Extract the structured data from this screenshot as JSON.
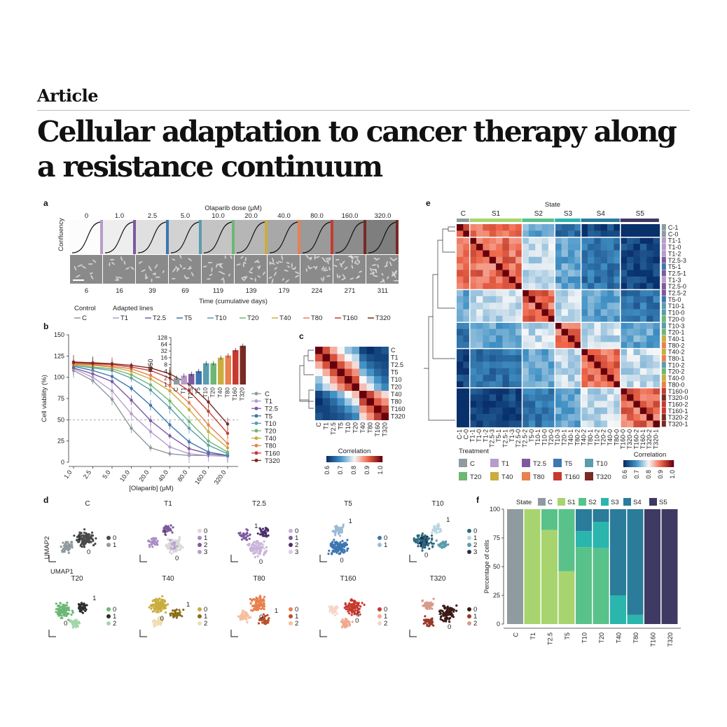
{
  "header": {
    "kicker": "Article",
    "title_line1": "Cellular adaptation to cancer therapy along",
    "title_line2": "a resistance continuum"
  },
  "colors": {
    "C": "#8f9b9e",
    "T1": "#b79ccb",
    "T2.5": "#7d5a9e",
    "T5": "#3d76b0",
    "T10": "#5a9cae",
    "T20": "#6db774",
    "T40": "#c9ad3f",
    "T80": "#e8804f",
    "T160": "#c73a2f",
    "T320": "#7a2a24",
    "S1": "#a8d46f",
    "S2": "#59c28a",
    "S3": "#2ab5ad",
    "S4": "#2b7b9b",
    "S5": "#3e3a63"
  },
  "panel_labels": [
    "a",
    "b",
    "c",
    "d",
    "e",
    "f"
  ],
  "panel_a": {
    "top_label": "Olaparib dose (μM)",
    "doses": [
      "0",
      "1.0",
      "2.5",
      "5.0",
      "10.0",
      "20.0",
      "40.0",
      "80.0",
      "160.0",
      "320.0"
    ],
    "days": [
      "6",
      "16",
      "39",
      "69",
      "119",
      "139",
      "179",
      "224",
      "271",
      "311"
    ],
    "y_label": "Confluency",
    "x_label": "Time (cumulative days)"
  },
  "legend_b": {
    "control_title": "Control",
    "adapted_title": "Adapted lines",
    "control": [
      "C"
    ],
    "adapted": [
      "T1",
      "T2.5",
      "T5",
      "T10",
      "T20",
      "T40",
      "T80",
      "T160",
      "T320"
    ]
  },
  "chart_data": [
    {
      "type": "line",
      "panel": "b",
      "title": "",
      "xlabel": "[Olaparib] (μM)",
      "ylabel": "Cell viability (%)",
      "x_ticks": [
        "1.0",
        "2.5",
        "5.0",
        "10.0",
        "20.0",
        "40.0",
        "80.0",
        "160.0",
        "320.0"
      ],
      "y_ticks": [
        0,
        25,
        50,
        75,
        100,
        125,
        150
      ],
      "ylim": [
        0,
        150
      ],
      "reference_line_y": 50,
      "series": [
        {
          "name": "C",
          "values": [
            108,
            96,
            74,
            40,
            17,
            10,
            8,
            8,
            7
          ]
        },
        {
          "name": "T1",
          "values": [
            110,
            100,
            84,
            57,
            36,
            18,
            10,
            8,
            7
          ]
        },
        {
          "name": "T2.5",
          "values": [
            111,
            104,
            95,
            73,
            49,
            31,
            16,
            10,
            8
          ]
        },
        {
          "name": "T5",
          "values": [
            113,
            108,
            101,
            87,
            67,
            44,
            24,
            12,
            8
          ]
        },
        {
          "name": "T10",
          "values": [
            114,
            111,
            108,
            99,
            85,
            64,
            40,
            20,
            10
          ]
        },
        {
          "name": "T20",
          "values": [
            114,
            112,
            110,
            103,
            91,
            72,
            48,
            25,
            12
          ]
        },
        {
          "name": "T40",
          "values": [
            115,
            114,
            112,
            107,
            98,
            84,
            62,
            36,
            17
          ]
        },
        {
          "name": "T80",
          "values": [
            116,
            115,
            113,
            110,
            102,
            90,
            70,
            44,
            22
          ]
        },
        {
          "name": "T160",
          "values": [
            117,
            116,
            115,
            112,
            108,
            99,
            84,
            60,
            34
          ]
        },
        {
          "name": "T320",
          "values": [
            118,
            117,
            116,
            114,
            111,
            104,
            92,
            71,
            45
          ]
        }
      ],
      "legend": [
        "C",
        "T1",
        "T2.5",
        "T5",
        "T10",
        "T20",
        "T40",
        "T80",
        "T160",
        "T320"
      ]
    },
    {
      "type": "bar",
      "panel": "b-inset",
      "title": "",
      "ylabel": "IC50",
      "categories": [
        "C",
        "T1",
        "T2.5",
        "T5",
        "T10",
        "T20",
        "T40",
        "T80",
        "T160",
        "T320"
      ],
      "values": [
        2,
        2.5,
        3,
        4,
        9,
        9,
        16,
        20,
        35,
        55
      ],
      "y_ticks": [
        1,
        2,
        4,
        8,
        16,
        32,
        64,
        128
      ],
      "scale": "log2"
    },
    {
      "type": "heatmap",
      "panel": "c",
      "title": "",
      "labels": [
        "C",
        "T1",
        "T2.5",
        "T5",
        "T10",
        "T20",
        "T40",
        "T80",
        "T160",
        "T320"
      ],
      "colorbar_title": "Correlation",
      "colorbar_ticks": [
        "0.6",
        "0.7",
        "0.8",
        "0.9",
        "1.0"
      ],
      "values": [
        [
          1.0,
          0.92,
          0.85,
          0.8,
          0.75,
          0.72,
          0.62,
          0.6,
          0.62,
          0.64
        ],
        [
          0.92,
          1.0,
          0.92,
          0.85,
          0.8,
          0.77,
          0.66,
          0.63,
          0.62,
          0.62
        ],
        [
          0.85,
          0.92,
          1.0,
          0.92,
          0.86,
          0.82,
          0.7,
          0.66,
          0.64,
          0.63
        ],
        [
          0.8,
          0.85,
          0.92,
          1.0,
          0.92,
          0.87,
          0.74,
          0.7,
          0.66,
          0.64
        ],
        [
          0.75,
          0.8,
          0.86,
          0.92,
          1.0,
          0.92,
          0.8,
          0.75,
          0.7,
          0.66
        ],
        [
          0.72,
          0.77,
          0.82,
          0.87,
          0.92,
          1.0,
          0.84,
          0.79,
          0.73,
          0.69
        ],
        [
          0.62,
          0.66,
          0.7,
          0.74,
          0.8,
          0.84,
          1.0,
          0.93,
          0.86,
          0.82
        ],
        [
          0.6,
          0.63,
          0.66,
          0.7,
          0.75,
          0.79,
          0.93,
          1.0,
          0.91,
          0.87
        ],
        [
          0.62,
          0.62,
          0.64,
          0.66,
          0.7,
          0.73,
          0.86,
          0.91,
          1.0,
          0.94
        ],
        [
          0.64,
          0.62,
          0.63,
          0.64,
          0.66,
          0.69,
          0.82,
          0.87,
          0.94,
          1.0
        ]
      ]
    },
    {
      "type": "heatmap",
      "panel": "e",
      "title": "State",
      "state_groups": [
        "C",
        "S1",
        "S2",
        "S3",
        "S4",
        "S5"
      ],
      "row_labels": [
        "C-1",
        "C-0",
        "T1-1",
        "T1-0",
        "T1-2",
        "T2.5-3",
        "T5-1",
        "T2.5-1",
        "T1-3",
        "T2.5-0",
        "T2.5-2",
        "T5-0",
        "T10-1",
        "T10-0",
        "T20-0",
        "T10-3",
        "T20-1",
        "T40-1",
        "T80-2",
        "T40-2",
        "T80-1",
        "T10-2",
        "T20-2",
        "T40-0",
        "T80-0",
        "T160-0",
        "T320-0",
        "T160-2",
        "T160-1",
        "T320-2",
        "T320-1"
      ],
      "col_labels": [
        "C-1",
        "C-0",
        "T1-1",
        "T1-0",
        "T1-2",
        "T2.5-3",
        "T5-1",
        "T2.5-1",
        "T1-3",
        "T2.5-0",
        "T2.5-2",
        "T5-0",
        "T10-1",
        "T10-0",
        "T20-0",
        "T10-3",
        "T20-1",
        "T40-1",
        "T80-2",
        "T40-2",
        "T80-1",
        "T10-2",
        "T20-2",
        "T40-0",
        "T80-0",
        "T160-0",
        "T320-0",
        "T160-2",
        "T160-1",
        "T320-2",
        "T320-1"
      ],
      "colorbar_title": "Correlation",
      "colorbar_ticks": [
        "0.6",
        "0.7",
        "0.8",
        "0.9",
        "1.0"
      ],
      "treatment_legend_title": "Treatment",
      "treatment_legend": [
        "C",
        "T1",
        "T2.5",
        "T5",
        "T10",
        "T20",
        "T40",
        "T80",
        "T160",
        "T320"
      ]
    },
    {
      "type": "bar",
      "panel": "f",
      "stacked": true,
      "title": "",
      "xlabel": "",
      "ylabel": "Percentage of cells",
      "legend_title": "State",
      "categories": [
        "C",
        "T1",
        "T2.5",
        "T5",
        "T10",
        "T20",
        "T40",
        "T80",
        "T160",
        "T320"
      ],
      "y_ticks": [
        0,
        25,
        50,
        75,
        100
      ],
      "ylim": [
        0,
        100
      ],
      "series": [
        {
          "name": "C",
          "values": [
            100,
            0,
            0,
            0,
            0,
            0,
            0,
            0,
            0,
            0
          ]
        },
        {
          "name": "S1",
          "values": [
            0,
            100,
            82,
            46,
            0,
            0,
            0,
            0,
            0,
            0
          ]
        },
        {
          "name": "S2",
          "values": [
            0,
            0,
            18,
            54,
            67,
            66,
            0,
            0,
            0,
            0
          ]
        },
        {
          "name": "S3",
          "values": [
            0,
            0,
            0,
            0,
            14,
            23,
            25,
            8,
            0,
            0
          ]
        },
        {
          "name": "S4",
          "values": [
            0,
            0,
            0,
            0,
            19,
            11,
            75,
            92,
            0,
            0
          ]
        },
        {
          "name": "S5",
          "values": [
            0,
            0,
            0,
            0,
            0,
            0,
            0,
            0,
            100,
            100
          ]
        }
      ]
    }
  ],
  "panel_d": {
    "axis_y": "UMAP2",
    "axis_x": "UMAP1",
    "panels": [
      {
        "name": "C",
        "clusters": [
          "0",
          "1"
        ]
      },
      {
        "name": "T1",
        "clusters": [
          "0",
          "1",
          "2",
          "3"
        ]
      },
      {
        "name": "T2.5",
        "clusters": [
          "0",
          "1",
          "2",
          "3"
        ]
      },
      {
        "name": "T5",
        "clusters": [
          "0",
          "1"
        ]
      },
      {
        "name": "T10",
        "clusters": [
          "0",
          "1",
          "2",
          "3"
        ]
      },
      {
        "name": "T20",
        "clusters": [
          "0",
          "1",
          "2"
        ]
      },
      {
        "name": "T40",
        "clusters": [
          "0",
          "1",
          "2"
        ]
      },
      {
        "name": "T80",
        "clusters": [
          "0",
          "1",
          "2"
        ]
      },
      {
        "name": "T160",
        "clusters": [
          "0",
          "1",
          "2"
        ]
      },
      {
        "name": "T320",
        "clusters": [
          "0",
          "1",
          "2"
        ]
      }
    ]
  }
}
